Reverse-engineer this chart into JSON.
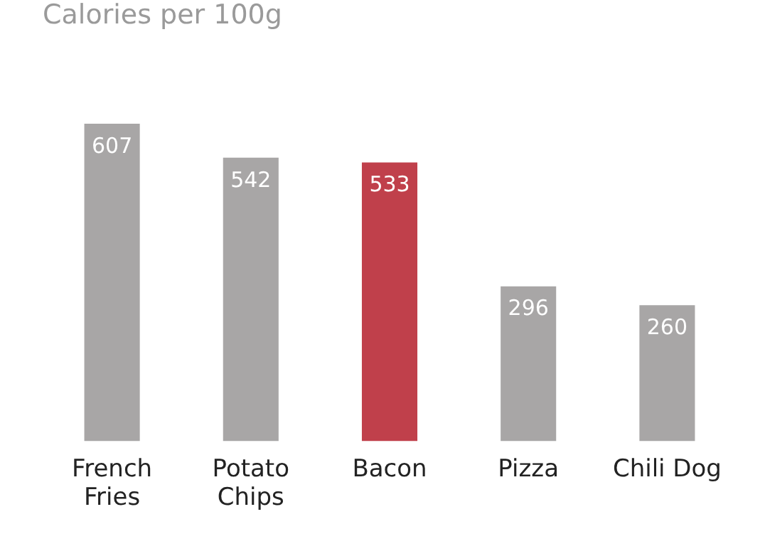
{
  "chart_data": {
    "type": "bar",
    "title": "Calories per 100g",
    "categories": [
      "French Fries",
      "Potato Chips",
      "Bacon",
      "Pizza",
      "Chili Dog"
    ],
    "values": [
      607,
      542,
      533,
      296,
      260
    ],
    "colors": [
      "#a8a6a6",
      "#a8a6a6",
      "#c0404b",
      "#a8a6a6",
      "#a8a6a6"
    ],
    "data_labels": true,
    "grid": false,
    "legend": false
  }
}
